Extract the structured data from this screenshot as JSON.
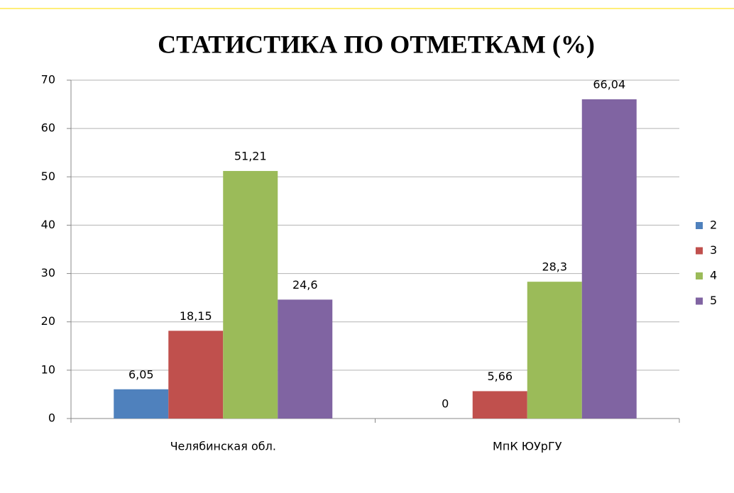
{
  "chart_data": {
    "type": "bar",
    "title": "СТАТИСТИКА ПО ОТМЕТКАМ (%)",
    "categories": [
      "Челябинская обл.",
      "МпК ЮУрГУ"
    ],
    "series": [
      {
        "name": "2",
        "color": "#4f81bd",
        "values": [
          6.05,
          0
        ],
        "value_labels": [
          "6,05",
          "0"
        ]
      },
      {
        "name": "3",
        "color": "#c0504d",
        "values": [
          18.15,
          5.66
        ],
        "value_labels": [
          "18,15",
          "5,66"
        ]
      },
      {
        "name": "4",
        "color": "#9bbb59",
        "values": [
          51.21,
          28.3
        ],
        "value_labels": [
          "51,21",
          "28,3"
        ]
      },
      {
        "name": "5",
        "color": "#8064a2",
        "values": [
          24.6,
          66.04
        ],
        "value_labels": [
          "24,6",
          "66,04"
        ]
      }
    ],
    "ylim": [
      0,
      70
    ],
    "yticks": [
      0,
      10,
      20,
      30,
      40,
      50,
      60,
      70
    ],
    "grid": true,
    "legend": "right"
  }
}
